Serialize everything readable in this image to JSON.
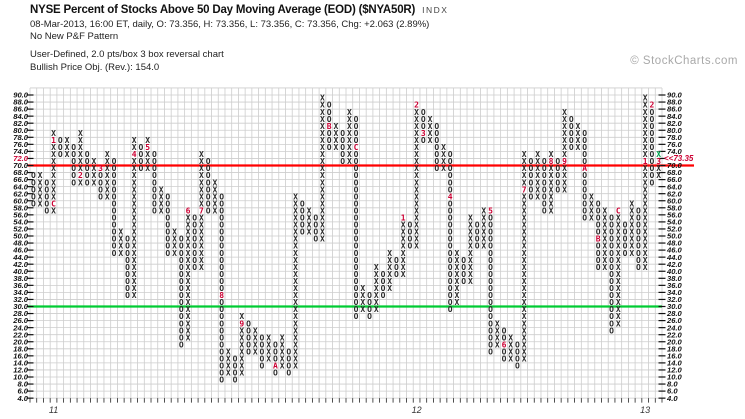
{
  "header": {
    "title": "NYSE Percent of Stocks Above 50 Day Moving Average (EOD) ($NYA50R)",
    "symbol_suffix": "INDX",
    "quote_line": "08-Mar-2013, 16:00 ET, daily, O: 73.356, H: 73.356, L: 73.356, C: 73.356, Chg: +2.063 (2.89%)",
    "pattern_line": "No New P&F Pattern",
    "settings_line": "User-Defined, 2.0 pts/box 3 box reversal chart",
    "objective_line": "Bullish Price Obj. (Rev.): 154.0"
  },
  "watermark": "© StockCharts.com",
  "colors": {
    "glyph": "#2b2b2b",
    "month_label": "#cc0033",
    "green_mark": "#00a651",
    "red_line": "#ff0000",
    "green_line": "#00cc33",
    "grid": "#cdcdcd",
    "axis_text": "#111111",
    "axis_highlight": "#cc0033",
    "year_text": "#333333"
  },
  "chart_data": {
    "type": "pnf",
    "title": "NYSE Percent of Stocks Above 50 Day Moving Average (EOD)",
    "box_size": 2.0,
    "reversal": 3,
    "last_price": 73.35,
    "ylim": [
      4,
      90
    ],
    "y_ticks": [
      "90.0",
      "88.0",
      "86.0",
      "84.0",
      "82.0",
      "80.0",
      "78.0",
      "76.0",
      "74.0",
      "72.0",
      "70.0",
      "68.0",
      "66.0",
      "64.0",
      "62.0",
      "60.0",
      "58.0",
      "56.0",
      "54.0",
      "52.0",
      "50.0",
      "48.0",
      "46.0",
      "44.0",
      "42.0",
      "40.0",
      "38.0",
      "36.0",
      "34.0",
      "32.0",
      "30.0",
      "28.0",
      "26.0",
      "24.0",
      "22.0",
      "20.0",
      "18.0",
      "16.0",
      "14.0",
      "12.0",
      "10.0",
      "8.0",
      "6.0",
      "4.0"
    ],
    "left_axis_highlight_value": 72,
    "price_annotation": {
      "text": "<<73.35",
      "value": 72
    },
    "hlines": [
      {
        "value": 70,
        "color_key": "red_line"
      },
      {
        "value": 30,
        "color_key": "green_line"
      }
    ],
    "year_labels": [
      {
        "label": "11",
        "col": 4
      },
      {
        "label": "12",
        "col": 58
      },
      {
        "label": "13",
        "col": 92
      }
    ],
    "columns": [
      {
        "t": "O",
        "lo": 58,
        "hi": 66
      },
      {
        "t": "X",
        "lo": 58,
        "hi": 66
      },
      {
        "t": "O",
        "lo": 56,
        "hi": 64
      },
      {
        "t": "X",
        "lo": 56,
        "hi": 78,
        "m": [
          [
            58,
            "C"
          ],
          [
            76,
            "1"
          ]
        ]
      },
      {
        "t": "O",
        "lo": 72,
        "hi": 76
      },
      {
        "t": "X",
        "lo": 72,
        "hi": 76
      },
      {
        "t": "O",
        "lo": 64,
        "hi": 74
      },
      {
        "t": "X",
        "lo": 64,
        "hi": 78,
        "m": [
          [
            66,
            "2"
          ]
        ]
      },
      {
        "t": "O",
        "lo": 64,
        "hi": 72
      },
      {
        "t": "X",
        "lo": 64,
        "hi": 70
      },
      {
        "t": "O",
        "lo": 60,
        "hi": 68,
        "m": [
          [
            68,
            "3"
          ]
        ]
      },
      {
        "t": "X",
        "lo": 60,
        "hi": 72
      },
      {
        "t": "O",
        "lo": 44,
        "hi": 70
      },
      {
        "t": "X",
        "lo": 44,
        "hi": 50
      },
      {
        "t": "O",
        "lo": 32,
        "hi": 48
      },
      {
        "t": "X",
        "lo": 32,
        "hi": 76,
        "m": [
          [
            72,
            "4"
          ]
        ]
      },
      {
        "t": "O",
        "lo": 68,
        "hi": 74
      },
      {
        "t": "X",
        "lo": 68,
        "hi": 76,
        "m": [
          [
            74,
            "5"
          ]
        ]
      },
      {
        "t": "O",
        "lo": 56,
        "hi": 72
      },
      {
        "t": "X",
        "lo": 56,
        "hi": 62
      },
      {
        "t": "O",
        "lo": 44,
        "hi": 60
      },
      {
        "t": "X",
        "lo": 44,
        "hi": 50
      },
      {
        "t": "O",
        "lo": 18,
        "hi": 48
      },
      {
        "t": "X",
        "lo": 20,
        "hi": 56,
        "m": [
          [
            56,
            "6"
          ]
        ]
      },
      {
        "t": "O",
        "lo": 40,
        "hi": 54
      },
      {
        "t": "X",
        "lo": 40,
        "hi": 72,
        "m": [
          [
            56,
            "7"
          ]
        ]
      },
      {
        "t": "O",
        "lo": 56,
        "hi": 70
      },
      {
        "t": "X",
        "lo": 56,
        "hi": 64
      },
      {
        "t": "O",
        "lo": 8,
        "hi": 60,
        "m": [
          [
            32,
            "8"
          ]
        ]
      },
      {
        "t": "X",
        "lo": 10,
        "hi": 16
      },
      {
        "t": "O",
        "lo": 8,
        "hi": 14
      },
      {
        "t": "X",
        "lo": 10,
        "hi": 26,
        "m": [
          [
            24,
            "9"
          ]
        ]
      },
      {
        "t": "O",
        "lo": 16,
        "hi": 24
      },
      {
        "t": "X",
        "lo": 16,
        "hi": 22
      },
      {
        "t": "O",
        "lo": 12,
        "hi": 20
      },
      {
        "t": "X",
        "lo": 14,
        "hi": 20
      },
      {
        "t": "O",
        "lo": 10,
        "hi": 18,
        "m": [
          [
            12,
            "A"
          ]
        ]
      },
      {
        "t": "X",
        "lo": 12,
        "hi": 20
      },
      {
        "t": "O",
        "lo": 10,
        "hi": 16
      },
      {
        "t": "X",
        "lo": 12,
        "hi": 60
      },
      {
        "t": "O",
        "lo": 50,
        "hi": 58
      },
      {
        "t": "X",
        "lo": 50,
        "hi": 56
      },
      {
        "t": "O",
        "lo": 48,
        "hi": 54
      },
      {
        "t": "X",
        "lo": 48,
        "hi": 88
      },
      {
        "t": "O",
        "lo": 74,
        "hi": 86,
        "m": [
          [
            80,
            "B"
          ]
        ]
      },
      {
        "t": "X",
        "lo": 74,
        "hi": 80
      },
      {
        "t": "O",
        "lo": 70,
        "hi": 78
      },
      {
        "t": "X",
        "lo": 70,
        "hi": 84
      },
      {
        "t": "O",
        "lo": 26,
        "hi": 82,
        "m": [
          [
            74,
            "C"
          ]
        ]
      },
      {
        "t": "X",
        "lo": 28,
        "hi": 34
      },
      {
        "t": "O",
        "lo": 26,
        "hi": 32
      },
      {
        "t": "X",
        "lo": 28,
        "hi": 40
      },
      {
        "t": "O",
        "lo": 32,
        "hi": 38
      },
      {
        "t": "X",
        "lo": 34,
        "hi": 44
      },
      {
        "t": "O",
        "lo": 38,
        "hi": 42
      },
      {
        "t": "X",
        "lo": 38,
        "hi": 54,
        "m": [
          [
            54,
            "1"
          ]
        ]
      },
      {
        "t": "O",
        "lo": 46,
        "hi": 52
      },
      {
        "t": "X",
        "lo": 46,
        "hi": 86,
        "m": [
          [
            86,
            "2"
          ]
        ]
      },
      {
        "t": "O",
        "lo": 76,
        "hi": 84,
        "m": [
          [
            78,
            "3"
          ]
        ]
      },
      {
        "t": "X",
        "lo": 76,
        "hi": 82
      },
      {
        "t": "O",
        "lo": 68,
        "hi": 80
      },
      {
        "t": "X",
        "lo": 68,
        "hi": 74
      },
      {
        "t": "O",
        "lo": 28,
        "hi": 72,
        "m": [
          [
            60,
            "4"
          ]
        ]
      },
      {
        "t": "X",
        "lo": 30,
        "hi": 44
      },
      {
        "t": "O",
        "lo": 36,
        "hi": 42
      },
      {
        "t": "X",
        "lo": 36,
        "hi": 54
      },
      {
        "t": "O",
        "lo": 46,
        "hi": 52
      },
      {
        "t": "X",
        "lo": 46,
        "hi": 56
      },
      {
        "t": "O",
        "lo": 16,
        "hi": 56,
        "m": [
          [
            56,
            "5"
          ]
        ]
      },
      {
        "t": "X",
        "lo": 18,
        "hi": 24
      },
      {
        "t": "O",
        "lo": 14,
        "hi": 22,
        "m": [
          [
            18,
            "6"
          ]
        ]
      },
      {
        "t": "X",
        "lo": 14,
        "hi": 20
      },
      {
        "t": "O",
        "lo": 12,
        "hi": 18
      },
      {
        "t": "X",
        "lo": 14,
        "hi": 72,
        "m": [
          [
            62,
            "7"
          ]
        ]
      },
      {
        "t": "O",
        "lo": 60,
        "hi": 70
      },
      {
        "t": "X",
        "lo": 60,
        "hi": 72
      },
      {
        "t": "O",
        "lo": 56,
        "hi": 70
      },
      {
        "t": "X",
        "lo": 56,
        "hi": 72,
        "m": [
          [
            70,
            "8"
          ]
        ]
      },
      {
        "t": "O",
        "lo": 62,
        "hi": 70
      },
      {
        "t": "X",
        "lo": 62,
        "hi": 84,
        "m": [
          [
            70,
            "9"
          ]
        ]
      },
      {
        "t": "O",
        "lo": 74,
        "hi": 82
      },
      {
        "t": "X",
        "lo": 74,
        "hi": 80
      },
      {
        "t": "O",
        "lo": 54,
        "hi": 78,
        "m": [
          [
            68,
            "A"
          ]
        ]
      },
      {
        "t": "X",
        "lo": 54,
        "hi": 60
      },
      {
        "t": "O",
        "lo": 40,
        "hi": 58,
        "m": [
          [
            48,
            "B"
          ]
        ]
      },
      {
        "t": "X",
        "lo": 40,
        "hi": 56
      },
      {
        "t": "O",
        "lo": 22,
        "hi": 54
      },
      {
        "t": "X",
        "lo": 24,
        "hi": 56,
        "m": [
          [
            56,
            "C"
          ]
        ]
      },
      {
        "t": "O",
        "lo": 44,
        "hi": 52
      },
      {
        "t": "X",
        "lo": 44,
        "hi": 58
      },
      {
        "t": "O",
        "lo": 40,
        "hi": 56
      },
      {
        "t": "X",
        "lo": 40,
        "hi": 88,
        "m": [
          [
            70,
            "1"
          ]
        ]
      },
      {
        "t": "O",
        "lo": 64,
        "hi": 86,
        "m": [
          [
            86,
            "2"
          ]
        ]
      },
      {
        "t": "X",
        "lo": 66,
        "hi": 72,
        "m": [
          [
            70,
            "3"
          ]
        ],
        "g": true
      }
    ]
  }
}
